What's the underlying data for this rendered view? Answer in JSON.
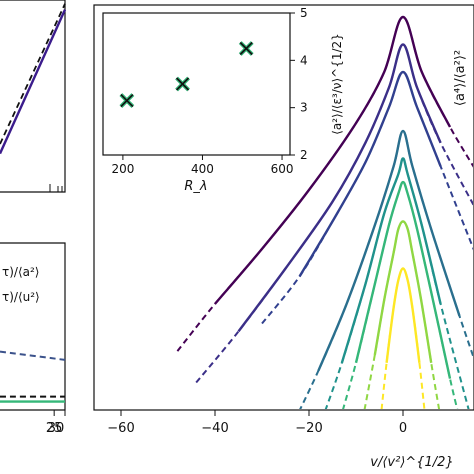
{
  "chart_data": [
    {
      "type": "line",
      "panel": "left-top (cropped)",
      "series": [
        {
          "color": "#3b1c8c",
          "style": "solid",
          "x": [
            0,
            30
          ],
          "y": [
            0.2,
            0.95
          ]
        },
        {
          "color": "#111111",
          "style": "dashed",
          "x": [
            0,
            30
          ],
          "y": [
            0.25,
            0.98
          ]
        }
      ]
    },
    {
      "type": "line",
      "panel": "left-bottom (cropped)",
      "xlim": [
        0,
        30
      ],
      "x_ticks": [
        "25",
        "30"
      ],
      "legend": [
        "τ)/⟨a²⟩",
        "τ)/⟨u²⟩"
      ],
      "series": [
        {
          "color": "#3b528b",
          "style": "dashed",
          "x": [
            0,
            30
          ],
          "y": [
            0.35,
            0.3
          ]
        },
        {
          "color": "#111111",
          "style": "dashed",
          "x": [
            0,
            30
          ],
          "y": [
            0.08,
            0.08
          ]
        },
        {
          "color": "#35b779",
          "style": "solid",
          "x": [
            0,
            30
          ],
          "y": [
            0.05,
            0.05
          ]
        }
      ]
    },
    {
      "type": "line",
      "panel": "main",
      "xlabel": "v/⟨v²⟩^{1/2}",
      "ylabel": "⟨a⁴⟩/⟨a²⟩²",
      "xlim": [
        -68,
        16
      ],
      "x_ticks": [
        "−60",
        "−40",
        "−20",
        "0"
      ],
      "x_tick_values": [
        -60,
        -40,
        -20,
        0
      ],
      "series": [
        {
          "color": "#440154",
          "x": [
            -48,
            -40,
            -30,
            -20,
            -10,
            -4,
            0,
            4,
            10,
            16
          ],
          "y": [
            0.15,
            0.27,
            0.41,
            0.56,
            0.73,
            0.86,
            1.0,
            0.86,
            0.72,
            0.6
          ]
        },
        {
          "color": "#3b2f88",
          "x": [
            -44,
            -35,
            -25,
            -15,
            -8,
            -3,
            0,
            3,
            8,
            16
          ],
          "y": [
            0.07,
            0.2,
            0.36,
            0.53,
            0.68,
            0.82,
            0.93,
            0.82,
            0.68,
            0.5
          ]
        },
        {
          "color": "#31408f",
          "x": [
            -30,
            -22,
            -15,
            -8,
            -3,
            0,
            3,
            8,
            16
          ],
          "y": [
            0.22,
            0.34,
            0.48,
            0.63,
            0.77,
            0.86,
            0.77,
            0.62,
            0.38
          ]
        },
        {
          "color": "#2a6f8e",
          "x": [
            -24,
            -18,
            -12,
            -6,
            -2,
            0,
            2,
            6,
            12,
            16
          ],
          "y": [
            -0.05,
            0.1,
            0.27,
            0.47,
            0.62,
            0.71,
            0.62,
            0.46,
            0.24,
            0.1
          ]
        },
        {
          "color": "#20928c",
          "x": [
            -18,
            -13,
            -8,
            -4,
            -1,
            0,
            1,
            4,
            8,
            14
          ],
          "y": [
            -0.05,
            0.12,
            0.32,
            0.5,
            0.6,
            0.64,
            0.6,
            0.47,
            0.27,
            0.0
          ]
        },
        {
          "color": "#35b779",
          "x": [
            -14,
            -10,
            -6,
            -3,
            -1,
            0,
            1,
            3,
            6,
            10,
            12
          ],
          "y": [
            -0.05,
            0.12,
            0.32,
            0.47,
            0.55,
            0.58,
            0.55,
            0.46,
            0.3,
            0.08,
            -0.02
          ]
        },
        {
          "color": "#90d743",
          "x": [
            -9,
            -6,
            -4,
            -2,
            -1,
            0,
            1,
            2,
            4,
            6,
            8
          ],
          "y": [
            -0.05,
            0.14,
            0.28,
            0.4,
            0.46,
            0.48,
            0.46,
            0.4,
            0.27,
            0.12,
            -0.02
          ]
        },
        {
          "color": "#fde725",
          "x": [
            -5,
            -3.5,
            -2,
            -1,
            0,
            1,
            2,
            3.5,
            5
          ],
          "y": [
            -0.05,
            0.12,
            0.26,
            0.33,
            0.36,
            0.33,
            0.26,
            0.12,
            -0.05
          ]
        }
      ]
    },
    {
      "type": "scatter",
      "panel": "inset",
      "xlabel": "R_λ",
      "ylabel": "⟨a²⟩/⟨ε³/ν⟩^{1/2}",
      "xlim": [
        150,
        620
      ],
      "ylim": [
        2,
        5
      ],
      "x_ticks": [
        "200",
        "400",
        "600"
      ],
      "y_ticks": [
        "2",
        "3",
        "4",
        "5"
      ],
      "points": [
        {
          "x": 210,
          "y": 3.15
        },
        {
          "x": 350,
          "y": 3.5
        },
        {
          "x": 510,
          "y": 4.25
        }
      ],
      "marker_color": "#111111",
      "marker_fill": "#35b779"
    }
  ]
}
